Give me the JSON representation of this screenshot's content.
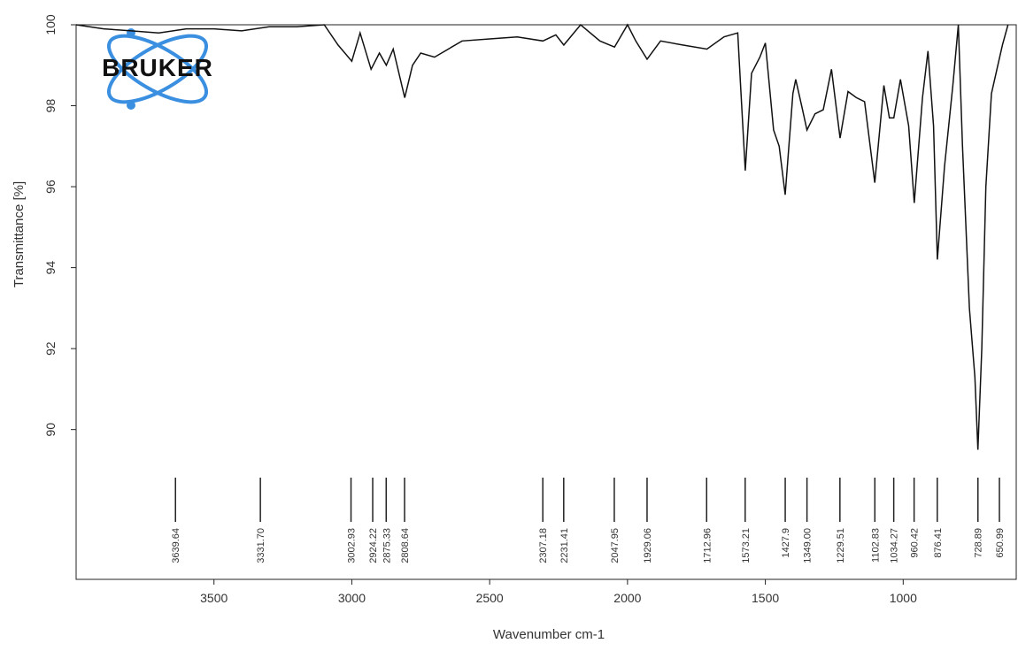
{
  "logo_text": "BRUKER",
  "chart_data": {
    "type": "line",
    "x_label": "Wavenumber cm-1",
    "y_label": "Transmittance [%]",
    "color": "#111111",
    "xlim": [
      4000,
      590
    ],
    "ylim": [
      86.3,
      100
    ],
    "xticks": [
      3500,
      3000,
      2500,
      2000,
      1500,
      1000
    ],
    "yticks": [
      90,
      92,
      94,
      96,
      98,
      100
    ],
    "x": [
      4000,
      3900,
      3800,
      3700,
      3600,
      3500,
      3400,
      3300,
      3200,
      3100,
      3050,
      3000,
      2970,
      2930,
      2900,
      2875,
      2850,
      2808,
      2780,
      2750,
      2700,
      2600,
      2500,
      2400,
      2307,
      2260,
      2231,
      2170,
      2100,
      2047,
      2000,
      1970,
      1929,
      1880,
      1800,
      1712,
      1650,
      1600,
      1590,
      1573,
      1550,
      1520,
      1500,
      1470,
      1450,
      1428,
      1400,
      1390,
      1365,
      1349,
      1320,
      1290,
      1260,
      1229,
      1200,
      1170,
      1140,
      1103,
      1070,
      1050,
      1034,
      1010,
      980,
      960,
      930,
      910,
      890,
      876,
      850,
      820,
      800,
      785,
      760,
      740,
      729,
      715,
      700,
      680,
      660,
      640,
      620
    ],
    "values": [
      100,
      99.9,
      99.85,
      99.8,
      99.9,
      99.9,
      99.85,
      99.95,
      99.95,
      100,
      99.5,
      99.1,
      99.8,
      98.9,
      99.3,
      99.0,
      99.4,
      98.2,
      99.0,
      99.3,
      99.2,
      99.6,
      99.65,
      99.7,
      99.6,
      99.75,
      99.5,
      100,
      99.6,
      99.45,
      100,
      99.6,
      99.15,
      99.6,
      99.5,
      99.4,
      99.7,
      99.8,
      98.5,
      96.4,
      98.8,
      99.2,
      99.55,
      97.4,
      97.0,
      95.8,
      98.3,
      98.65,
      97.9,
      97.4,
      97.8,
      97.9,
      98.9,
      97.2,
      98.35,
      98.2,
      98.1,
      96.1,
      98.5,
      97.7,
      97.7,
      98.65,
      97.5,
      95.6,
      98.2,
      99.35,
      97.5,
      94.2,
      96.5,
      98.5,
      100,
      97,
      93,
      91.3,
      89.5,
      92,
      96,
      98.3,
      98.9,
      99.5,
      100
    ],
    "peaks": [
      3639.64,
      {
        "value": 3331.7,
        "label": "3331.70"
      },
      3002.93,
      2924.22,
      2875.33,
      2808.64,
      2307.18,
      2231.41,
      2047.95,
      1929.06,
      1712.96,
      1573.21,
      1427.9,
      {
        "value": 1349.0,
        "label": "1349.00"
      },
      1229.51,
      1102.83,
      1034.27,
      960.42,
      876.41,
      728.89,
      650.99
    ]
  }
}
